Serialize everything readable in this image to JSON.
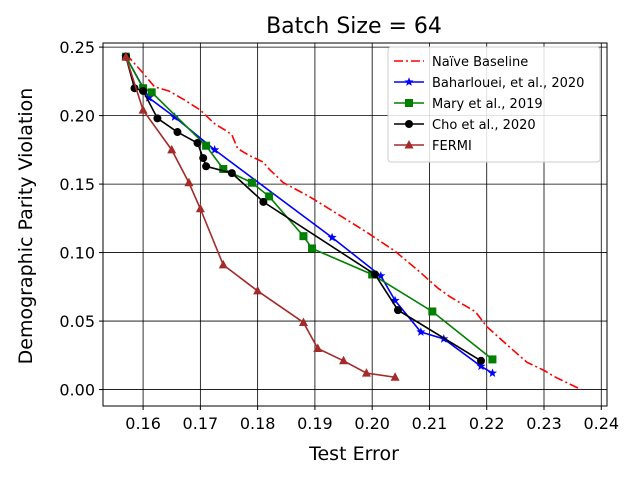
{
  "chart_data": {
    "type": "line",
    "title": "Batch Size = 64",
    "xlabel": "Test Error",
    "ylabel": "Demographic Parity Violation",
    "xlim": [
      0.153,
      0.241
    ],
    "ylim": [
      -0.012,
      0.253
    ],
    "xticks": [
      0.16,
      0.17,
      0.18,
      0.19,
      0.2,
      0.21,
      0.22,
      0.23,
      0.24
    ],
    "xtick_labels": [
      "0.16",
      "0.17",
      "0.18",
      "0.19",
      "0.20",
      "0.21",
      "0.22",
      "0.23",
      "0.24"
    ],
    "yticks": [
      0.0,
      0.05,
      0.1,
      0.15,
      0.2,
      0.25
    ],
    "ytick_labels": [
      "0.00",
      "0.05",
      "0.10",
      "0.15",
      "0.20",
      "0.25"
    ],
    "grid": true,
    "legend_position": "top-right",
    "series": [
      {
        "name": "Naïve Baseline",
        "color": "#ff0000",
        "marker": "none",
        "linestyle": "dashdot",
        "x": [
          0.157,
          0.16,
          0.162,
          0.1645,
          0.167,
          0.17,
          0.1725,
          0.1745,
          0.1755,
          0.1765,
          0.1785,
          0.181,
          0.182,
          0.183,
          0.1845,
          0.189,
          0.194,
          0.199,
          0.204,
          0.208,
          0.2115,
          0.2135,
          0.2155,
          0.218,
          0.22,
          0.224,
          0.227,
          0.23,
          0.232,
          0.234,
          0.2365
        ],
        "y": [
          0.245,
          0.231,
          0.221,
          0.218,
          0.212,
          0.204,
          0.194,
          0.189,
          0.186,
          0.176,
          0.171,
          0.166,
          0.161,
          0.157,
          0.151,
          0.141,
          0.128,
          0.115,
          0.101,
          0.087,
          0.074,
          0.068,
          0.063,
          0.057,
          0.046,
          0.031,
          0.02,
          0.014,
          0.009,
          0.005,
          0.0
        ]
      },
      {
        "name": "Baharlouei, et al., 2020",
        "color": "#0000ff",
        "marker": "star",
        "linestyle": "solid",
        "x": [
          0.157,
          0.161,
          0.1655,
          0.1725,
          0.193,
          0.2015,
          0.204,
          0.2085,
          0.2125,
          0.219,
          0.221
        ],
        "y": [
          0.243,
          0.213,
          0.199,
          0.175,
          0.111,
          0.083,
          0.065,
          0.042,
          0.037,
          0.017,
          0.012
        ]
      },
      {
        "name": "Mary et al., 2019",
        "color": "#008000",
        "marker": "square",
        "linestyle": "solid",
        "x": [
          0.157,
          0.16,
          0.1615,
          0.171,
          0.174,
          0.179,
          0.182,
          0.188,
          0.1895,
          0.2,
          0.2105,
          0.221
        ],
        "y": [
          0.243,
          0.22,
          0.217,
          0.178,
          0.161,
          0.151,
          0.141,
          0.112,
          0.103,
          0.084,
          0.057,
          0.022
        ]
      },
      {
        "name": "Cho et al., 2020",
        "color": "#000000",
        "marker": "circle",
        "linestyle": "solid",
        "x": [
          0.157,
          0.1585,
          0.16,
          0.1625,
          0.166,
          0.1695,
          0.1705,
          0.171,
          0.1755,
          0.181,
          0.2005,
          0.2045,
          0.219
        ],
        "y": [
          0.243,
          0.22,
          0.218,
          0.198,
          0.188,
          0.18,
          0.169,
          0.163,
          0.158,
          0.137,
          0.084,
          0.058,
          0.021
        ]
      },
      {
        "name": "FERMI",
        "color": "#a52a2a",
        "marker": "triangle",
        "linestyle": "solid",
        "x": [
          0.157,
          0.16,
          0.165,
          0.168,
          0.17,
          0.174,
          0.18,
          0.188,
          0.1905,
          0.195,
          0.199,
          0.204
        ],
        "y": [
          0.243,
          0.204,
          0.175,
          0.151,
          0.132,
          0.091,
          0.072,
          0.049,
          0.03,
          0.021,
          0.012,
          0.009
        ]
      }
    ]
  }
}
